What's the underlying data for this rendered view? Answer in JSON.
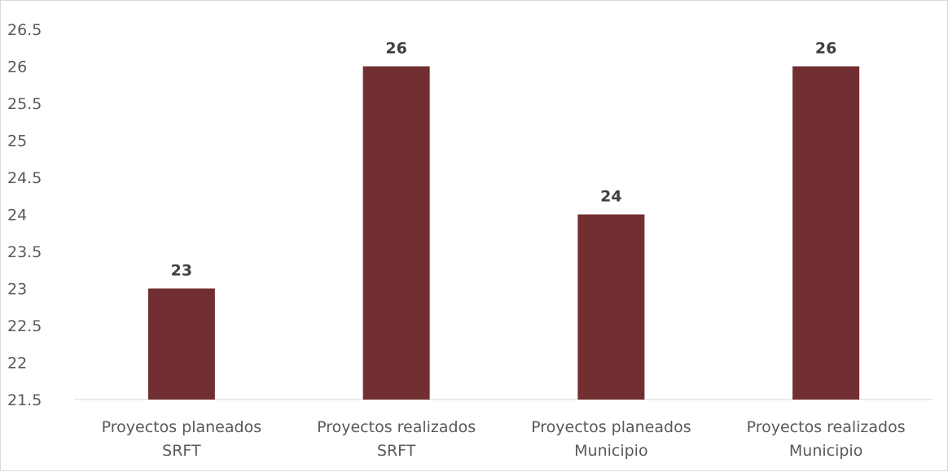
{
  "chart_data": {
    "type": "bar",
    "title": "",
    "xlabel": "",
    "ylabel": "",
    "categories": [
      [
        "Proyectos planeados",
        "SRFT"
      ],
      [
        "Proyectos realizados",
        "SRFT"
      ],
      [
        "Proyectos planeados",
        "Municipio"
      ],
      [
        "Proyectos realizados",
        "Municipio"
      ]
    ],
    "values": [
      23,
      26,
      24,
      26
    ],
    "data_labels": [
      "23",
      "26",
      "24",
      "26"
    ],
    "ylim": [
      21.5,
      26.5
    ],
    "yticks": [
      21.5,
      22,
      22.5,
      23,
      23.5,
      24,
      24.5,
      25,
      25.5,
      26,
      26.5
    ],
    "ytick_labels": [
      "21.5",
      "22",
      "22.5",
      "23",
      "23.5",
      "24",
      "24.5",
      "25",
      "25.5",
      "26",
      "26.5"
    ],
    "grid": false,
    "legend": "none",
    "colors": {
      "bar": "#722f31",
      "axis": "#d9d9d9",
      "text": "#595959",
      "label": "#404040"
    }
  }
}
